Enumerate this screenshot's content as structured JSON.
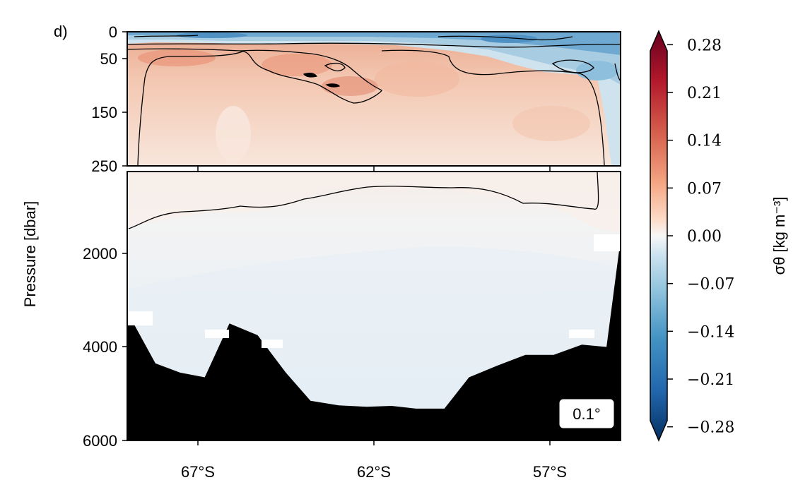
{
  "panel_label": "d)",
  "chart_data": {
    "type": "heatmap",
    "title": "",
    "ylabel": "Pressure [dbar]",
    "xlabel": "",
    "x_ticks": [
      {
        "value": -67,
        "label": "67°S"
      },
      {
        "value": -62,
        "label": "62°S"
      },
      {
        "value": -57,
        "label": "57°S"
      }
    ],
    "xlim": [
      -69,
      -55
    ],
    "upper_panel": {
      "ylim": [
        0,
        250
      ],
      "y_ticks": [
        {
          "value": 0,
          "label": "0"
        },
        {
          "value": 50,
          "label": "50"
        },
        {
          "value": 150,
          "label": "150"
        },
        {
          "value": 250,
          "label": "250"
        }
      ]
    },
    "lower_panel": {
      "ylim": [
        250,
        6000
      ],
      "y_ticks": [
        {
          "value": 2000,
          "label": "2000"
        },
        {
          "value": 4000,
          "label": "4000"
        },
        {
          "value": 6000,
          "label": "6000"
        }
      ]
    },
    "colorbar": {
      "label": "σθ [kg m⁻³]",
      "range": [
        -0.3,
        0.3
      ],
      "ticks": [
        "0.28",
        "0.21",
        "0.14",
        "0.07",
        "0.00",
        "−0.07",
        "−0.14",
        "−0.21",
        "−0.28"
      ],
      "tick_values": [
        0.28,
        0.21,
        0.14,
        0.07,
        0.0,
        -0.07,
        -0.14,
        -0.21,
        -0.28
      ],
      "colormap": "RdBu_r",
      "extend": "both"
    },
    "annotation": "0.1°",
    "bathymetry_color": "#000000",
    "bathymetry_depth": [
      {
        "lat": -69.0,
        "depth": 3250
      },
      {
        "lat": -68.2,
        "depth": 4350
      },
      {
        "lat": -67.5,
        "depth": 4550
      },
      {
        "lat": -66.8,
        "depth": 4650
      },
      {
        "lat": -66.1,
        "depth": 3500
      },
      {
        "lat": -65.3,
        "depth": 3750
      },
      {
        "lat": -64.5,
        "depth": 4550
      },
      {
        "lat": -63.8,
        "depth": 5150
      },
      {
        "lat": -63.0,
        "depth": 5250
      },
      {
        "lat": -62.2,
        "depth": 5280
      },
      {
        "lat": -61.5,
        "depth": 5260
      },
      {
        "lat": -60.8,
        "depth": 5320
      },
      {
        "lat": -60.0,
        "depth": 5320
      },
      {
        "lat": -59.3,
        "depth": 4650
      },
      {
        "lat": -58.5,
        "depth": 4400
      },
      {
        "lat": -57.7,
        "depth": 4170
      },
      {
        "lat": -56.9,
        "depth": 4170
      },
      {
        "lat": -56.1,
        "depth": 3950
      },
      {
        "lat": -55.4,
        "depth": 4000
      },
      {
        "lat": -55.0,
        "depth": 1700
      }
    ]
  }
}
